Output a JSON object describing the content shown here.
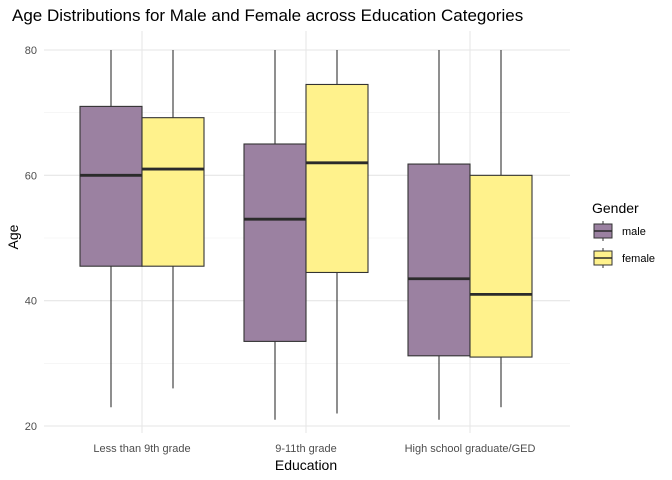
{
  "chart_data": {
    "type": "boxplot",
    "title": "Age Distributions for Male and Female across Education Categories",
    "xlabel": "Education",
    "ylabel": "Age",
    "categories": [
      "Less than 9th grade",
      "9-11th grade",
      "High school graduate/GED"
    ],
    "ylim": [
      20,
      80
    ],
    "yticks": [
      20,
      40,
      60,
      80
    ],
    "grid": true,
    "legend": {
      "title": "Gender",
      "position": "right"
    },
    "series": [
      {
        "name": "male",
        "color": "#9b81a1",
        "boxes": [
          {
            "min": 23,
            "q1": 45.5,
            "median": 60,
            "q3": 71,
            "max": 80
          },
          {
            "min": 21,
            "q1": 33.5,
            "median": 53,
            "q3": 65,
            "max": 80
          },
          {
            "min": 21,
            "q1": 31.2,
            "median": 43.5,
            "q3": 61.8,
            "max": 80
          }
        ]
      },
      {
        "name": "female",
        "color": "#fff28c",
        "boxes": [
          {
            "min": 26,
            "q1": 45.5,
            "median": 61,
            "q3": 69.2,
            "max": 80
          },
          {
            "min": 22,
            "q1": 44.5,
            "median": 62,
            "q3": 74.5,
            "max": 80
          },
          {
            "min": 23,
            "q1": 31,
            "median": 41,
            "q3": 60,
            "max": 80
          }
        ]
      }
    ]
  }
}
